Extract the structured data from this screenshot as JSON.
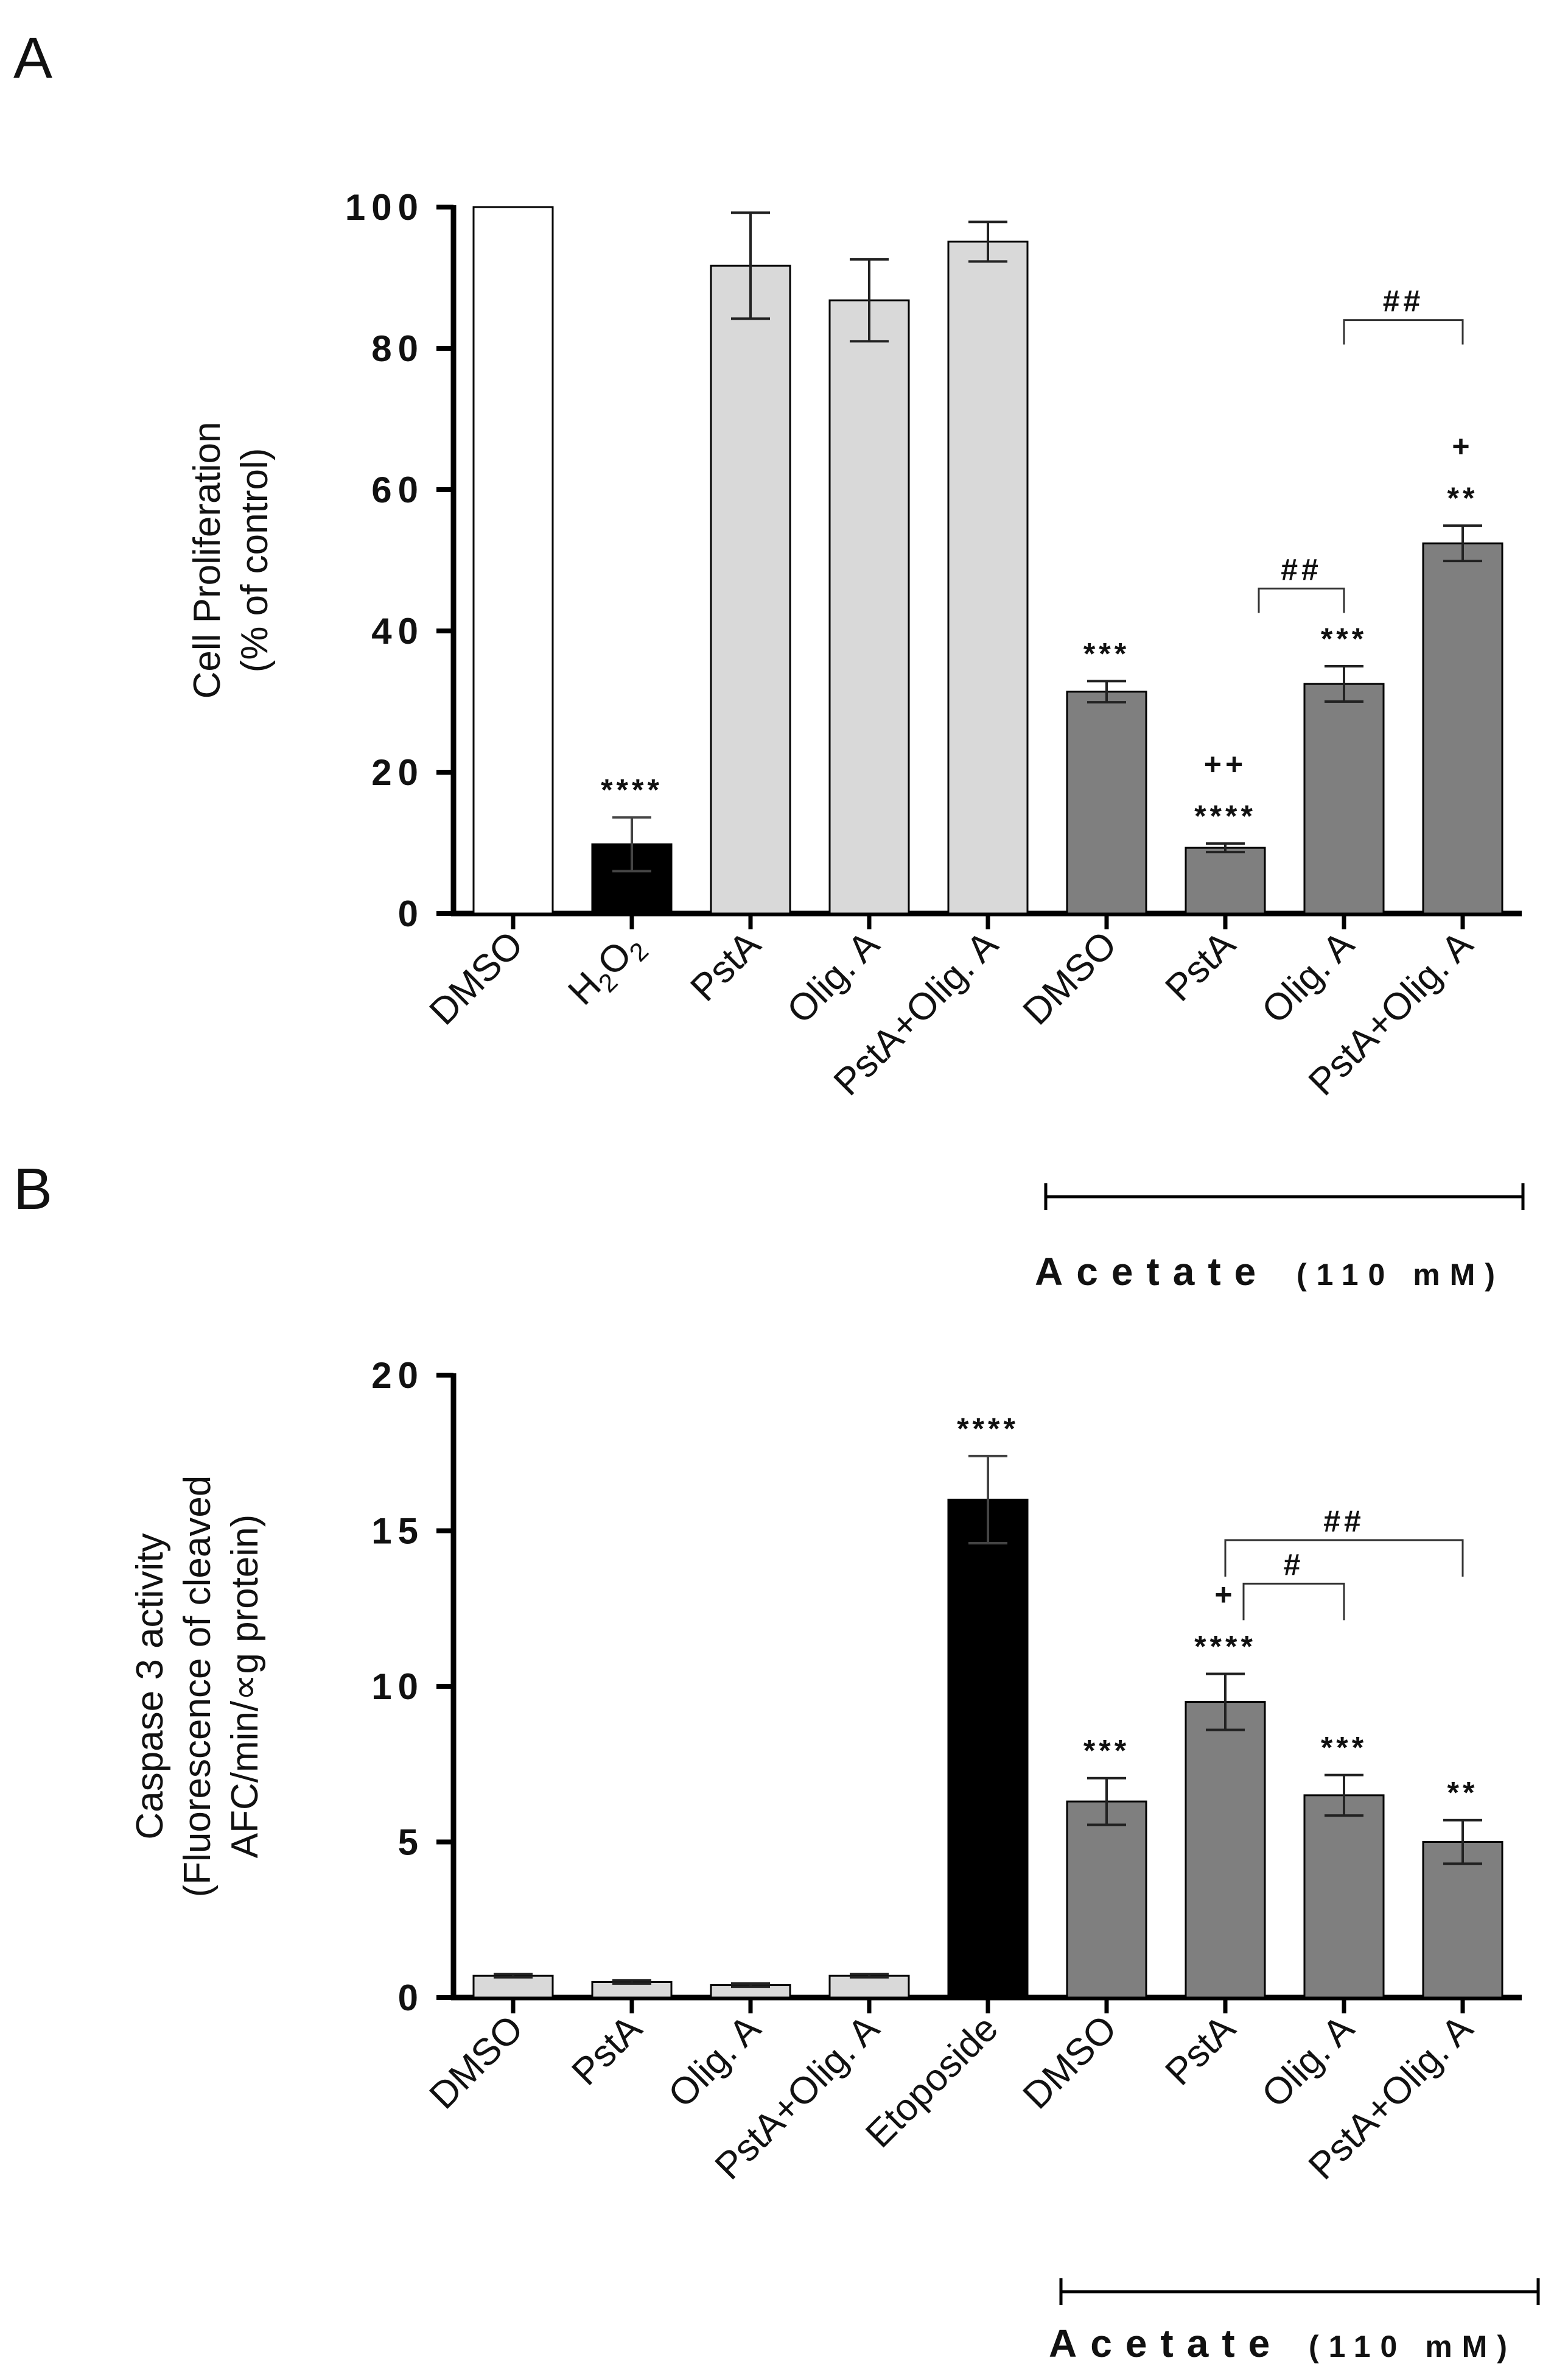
{
  "chart_data": [
    {
      "type": "bar",
      "panel": "A",
      "ylabel": "Cell Proliferation\n(% of control)",
      "ylim": [
        0,
        100
      ],
      "yticks": [
        0,
        20,
        40,
        60,
        80,
        100
      ],
      "ytick_labels": [
        "0",
        "20",
        "40",
        "60",
        "80",
        "100"
      ],
      "categories": [
        "DMSO",
        "H2O2",
        "PstA",
        "Olig. A",
        "PstA+Olig. A",
        "DMSO",
        "PstA",
        "Olig. A",
        "PstA+Olig. A"
      ],
      "values": [
        100,
        9.8,
        91.7,
        86.8,
        95.1,
        31.4,
        9.3,
        32.5,
        52.4
      ],
      "errors": [
        0,
        3.8,
        7.5,
        5.8,
        2.8,
        1.5,
        0.6,
        2.5,
        2.5
      ],
      "fill_colors": [
        "#ffffff",
        "#000000",
        "#d9d9d9",
        "#d9d9d9",
        "#d9d9d9",
        "#7f7f7f",
        "#7f7f7f",
        "#7f7f7f",
        "#7f7f7f"
      ],
      "significance_above": [
        "",
        "****",
        "",
        "",
        "",
        "***",
        "****",
        "***",
        "**"
      ],
      "plus_marks": [
        "",
        "",
        "",
        "",
        "",
        "",
        "++",
        "",
        "+"
      ],
      "comparisons": [
        {
          "from_index": 7,
          "to_index": 8,
          "label": "##",
          "y": 84
        },
        {
          "from_index": 6,
          "to_index": 7,
          "label": "##",
          "y": 46
        }
      ],
      "group_bracket": {
        "from_index": 5,
        "to_index": 8,
        "label": "Acetate",
        "sublabel": "(110 mM)"
      }
    },
    {
      "type": "bar",
      "panel": "B",
      "ylabel": "Caspase 3 activity\n(Fluorescence of cleaved\nAFC/min/∝g protein)",
      "ylim": [
        0,
        20
      ],
      "yticks": [
        0,
        5,
        10,
        15,
        20
      ],
      "ytick_labels": [
        "0",
        "5",
        "10",
        "15",
        "20"
      ],
      "categories": [
        "DMSO",
        "PstA",
        "Olig. A",
        "PstA+Olig. A",
        "Etoposide",
        "DMSO",
        "PstA",
        "Olig. A",
        "PstA+Olig. A"
      ],
      "values": [
        0.7,
        0.5,
        0.4,
        0.7,
        16.0,
        6.3,
        9.5,
        6.5,
        5.0
      ],
      "errors": [
        0.05,
        0.05,
        0.05,
        0.05,
        1.4,
        0.75,
        0.9,
        0.65,
        0.7
      ],
      "fill_colors": [
        "#d9d9d9",
        "#d9d9d9",
        "#d9d9d9",
        "#d9d9d9",
        "#000000",
        "#7f7f7f",
        "#7f7f7f",
        "#7f7f7f",
        "#7f7f7f"
      ],
      "significance_above": [
        "",
        "",
        "",
        "",
        "****",
        "***",
        "****",
        "***",
        "**"
      ],
      "plus_marks": [
        "",
        "",
        "",
        "",
        "",
        "",
        "+",
        "",
        ""
      ],
      "comparisons": [
        {
          "from_index": 6,
          "to_index": 8,
          "label": "##",
          "y": 14.7
        },
        {
          "from_index": 6,
          "to_index": 7,
          "label": "#",
          "y": 13.3
        }
      ],
      "group_bracket": {
        "from_index": 5,
        "to_index": 8,
        "label": "Acetate",
        "sublabel": "(110 mM)"
      }
    }
  ]
}
